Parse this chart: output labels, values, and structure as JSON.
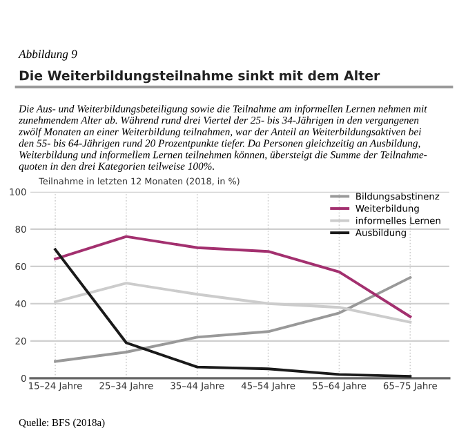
{
  "chart_data": {
    "type": "line",
    "title": "Die Weiterbildungsteilnahme sinkt mit dem Alter",
    "subtitle": "Die Aus- und Weiterbildungsbeteiligung sowie die Teilnahme am informellen Lernen nehmen mit\nzunehmendem Alter ab. Während rund drei Viertel der 25- bis 34-Jährigen in den vergangenen\nzwölf Monaten an einer Weiterbildung teilnahmen, war der Anteil an Weiterbildungsaktiven bei\nden 55- bis 64-Jährigen rund 20 Prozentpunkte tiefer. Da Personen gleichzeitig an Ausbildung,\nWeiterbildung und informellem Lernen teilnehmen können, übersteigt die Summe der Teilnahme-\nquoten in den drei Kategorien teilweise 100%.",
    "ylabel": "Teilnahme in letzten 12 Monaten (2018, in %)",
    "annotations": [
      "Abbildung 9",
      "Quelle: BFS (2018a)"
    ],
    "categories": [
      "15–24 Jahre",
      "25–34 Jahre",
      "35–44 Jahre",
      "45–54 Jahre",
      "55–64 Jahre",
      "65–75 Jahre"
    ],
    "series": [
      {
        "name": "Bildungsabstinenz",
        "color": "#999999",
        "values": [
          9,
          14,
          22,
          25,
          35,
          54
        ]
      },
      {
        "name": "Weiterbildung",
        "color": "#a3306f",
        "values": [
          64,
          76,
          70,
          68,
          57,
          33
        ]
      },
      {
        "name": "informelles Lernen",
        "color": "#cccccc",
        "values": [
          41,
          51,
          45,
          40,
          38,
          30
        ]
      },
      {
        "name": "Ausbildung",
        "color": "#1a1a1a",
        "values": [
          69,
          19,
          6,
          5,
          2,
          1
        ]
      }
    ],
    "ylim": [
      0,
      100
    ],
    "yticks": [
      0,
      20,
      40,
      60,
      80,
      100
    ],
    "grid": true,
    "legend": "top right",
    "marker": "none",
    "line_style": "solid"
  }
}
